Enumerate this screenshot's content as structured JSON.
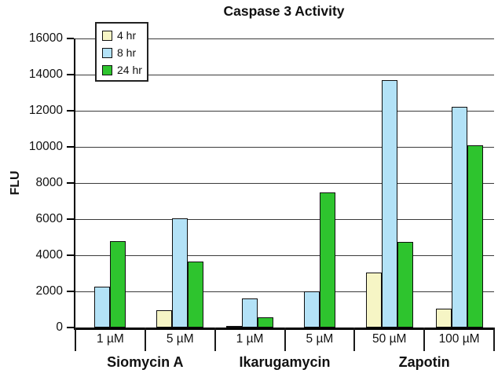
{
  "chart_data": {
    "type": "bar",
    "title": "Caspase 3 Activity",
    "ylabel": "FLU",
    "ylim": [
      0,
      16000
    ],
    "yticks": [
      0,
      2000,
      4000,
      6000,
      8000,
      10000,
      12000,
      14000,
      16000
    ],
    "grid": true,
    "legend_position": "top-left-inside",
    "categories": [
      "1 µM",
      "5 µM",
      "1 µM",
      "5 µM",
      "50 µM",
      "100 µM"
    ],
    "group_labels": [
      "Siomycin A",
      "Ikarugamycin",
      "Zapotin"
    ],
    "series": [
      {
        "name": "4 hr",
        "color": "#f6f5c5",
        "values": [
          0,
          950,
          60,
          0,
          3050,
          1050
        ]
      },
      {
        "name": "8 hr",
        "color": "#b3e2f7",
        "values": [
          2250,
          6050,
          1600,
          2000,
          13700,
          12200
        ]
      },
      {
        "name": "24 hr",
        "color": "#2ec42e",
        "values": [
          4800,
          3650,
          550,
          7500,
          4750,
          10100
        ]
      }
    ],
    "colors": {
      "axis": "#000000",
      "gridline": "#3a3a3a",
      "bar_border": "#101010",
      "background": "#ffffff",
      "text": "#111111"
    }
  }
}
